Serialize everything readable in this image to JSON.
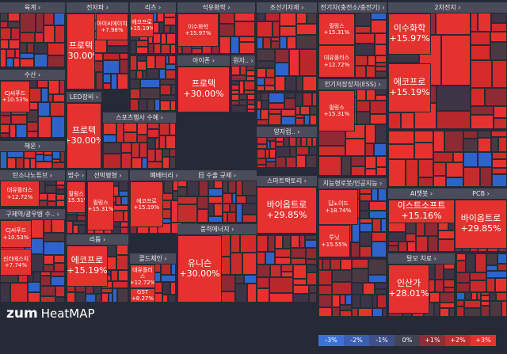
{
  "sectors": [
    {
      "name": "육계",
      "tiles": []
    },
    {
      "name": "수산",
      "tiles": [
        {
          "name": "CJ씨푸드",
          "change": "+10.53%"
        }
      ]
    },
    {
      "name": "해운",
      "tiles": []
    },
    {
      "name": "탄소나노튜브",
      "tiles": [
        {
          "name": "대유플러스",
          "change": "+12.72%"
        }
      ]
    },
    {
      "name": "구제역/광우병 수..",
      "tiles": [
        {
          "name": "CJ씨푸드",
          "change": "+10.53%"
        },
        {
          "name": "신라에스지",
          "change": "+7.74%"
        }
      ]
    },
    {
      "name": "전자파",
      "tiles": [
        {
          "name": "프로텍",
          "change": "+30.00%"
        },
        {
          "name": "아이씨에이치",
          "change": "+7.98%"
        }
      ]
    },
    {
      "name": "LED장비",
      "tiles": [
        {
          "name": "프로텍",
          "change": "+30.00%"
        }
      ]
    },
    {
      "name": "리츠",
      "tiles": [
        {
          "name": "에코프로",
          "change": "+15.19%"
        }
      ]
    },
    {
      "name": "스포츠행사 수혜",
      "tiles": []
    },
    {
      "name": "법수",
      "tiles": [
        {
          "name": "필링스",
          "change": "+15.31%"
        }
      ]
    },
    {
      "name": "선박평형",
      "tiles": [
        {
          "name": "필링스",
          "change": "+15.31%"
        }
      ]
    },
    {
      "name": "리튬",
      "tiles": [
        {
          "name": "에코프로",
          "change": "+15.19%"
        }
      ]
    },
    {
      "name": "폐배터리",
      "tiles": [
        {
          "name": "에코프로",
          "change": "+15.19%"
        }
      ]
    },
    {
      "name": "콜드체인",
      "tiles": [
        {
          "name": "대유플러스",
          "change": "+12.72%"
        },
        {
          "name": "GST",
          "change": "+8.27%"
        }
      ]
    },
    {
      "name": "석유화학",
      "tiles": [
        {
          "name": "이수화학",
          "change": "+15.97%"
        }
      ]
    },
    {
      "name": "아이폰",
      "tiles": [
        {
          "name": "프로텍",
          "change": "+30.00%"
        }
      ]
    },
    {
      "name": "원자..",
      "tiles": []
    },
    {
      "name": "日 수출 규제",
      "tiles": []
    },
    {
      "name": "풍력에너지",
      "tiles": [
        {
          "name": "유니슨",
          "change": "+30.00%"
        }
      ]
    },
    {
      "name": "조선기자재",
      "tiles": []
    },
    {
      "name": "양자컴..",
      "tiles": []
    },
    {
      "name": "스마트팩토리",
      "tiles": [
        {
          "name": "바이옵트로",
          "change": "+29.85%"
        }
      ]
    },
    {
      "name": "전기차(충전소/충전기)",
      "tiles": [
        {
          "name": "필링스",
          "change": "+15.31%"
        },
        {
          "name": "대유플러스",
          "change": "+12.72%"
        }
      ]
    },
    {
      "name": "전기저장장치(ESS)",
      "tiles": [
        {
          "name": "필링스",
          "change": "+15.31%"
        }
      ]
    },
    {
      "name": "지능형로봇/인공지능",
      "tiles": [
        {
          "name": "딥노이드",
          "change": "+18.74%"
        },
        {
          "name": "투닛",
          "change": "+15.55%"
        }
      ]
    },
    {
      "name": "2차전지",
      "tiles": [
        {
          "name": "이수화학",
          "change": "+15.97%"
        },
        {
          "name": "에코프로",
          "change": "+15.19%"
        }
      ]
    },
    {
      "name": "AI챗봇",
      "tiles": [
        {
          "name": "이스트소프트",
          "change": "+15.16%"
        }
      ]
    },
    {
      "name": "PCB",
      "tiles": [
        {
          "name": "바이옵트로",
          "change": "+29.85%"
        }
      ]
    },
    {
      "name": "탈모 치료",
      "tiles": [
        {
          "name": "인산가",
          "change": "+28.01%"
        }
      ]
    }
  ],
  "logo": {
    "brand": "zum",
    "product": "HeatMAP"
  },
  "legend": [
    "-3%",
    "-2%",
    "-1%",
    "0%",
    "+1%",
    "+2%",
    "+3%"
  ]
}
